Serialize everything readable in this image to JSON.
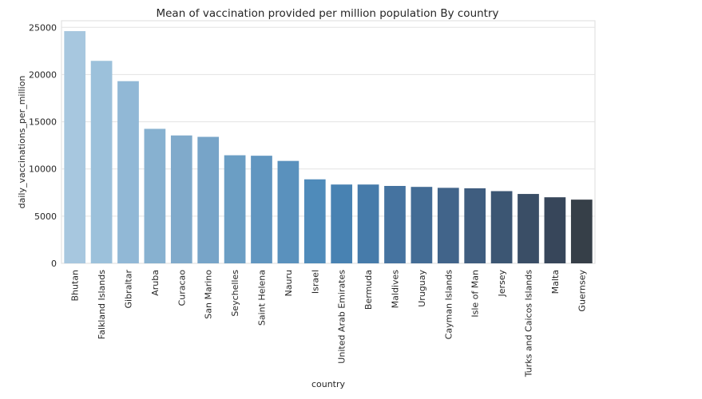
{
  "chart_data": {
    "type": "bar",
    "title": "Mean of vaccination provided per million population By country",
    "xlabel": "country",
    "ylabel": "daily_vaccinations_per_million",
    "ylim": [
      0,
      25700
    ],
    "yticks": [
      0,
      5000,
      10000,
      15000,
      20000,
      25000
    ],
    "grid": true,
    "categories": [
      "Bhutan",
      "Falkland Islands",
      "Gibraltar",
      "Aruba",
      "Curacao",
      "San Marino",
      "Seychelles",
      "Saint Helena",
      "Nauru",
      "Israel",
      "United Arab Emirates",
      "Bermuda",
      "Maldives",
      "Uruguay",
      "Cayman Islands",
      "Isle of Man",
      "Jersey",
      "Turks and Caicos Islands",
      "Malta",
      "Guernsey"
    ],
    "values": [
      24600,
      21450,
      19300,
      14250,
      13550,
      13400,
      11450,
      11400,
      10850,
      8900,
      8350,
      8350,
      8200,
      8100,
      8000,
      7950,
      7650,
      7350,
      7000,
      6750
    ],
    "colors": [
      "#a7c7df",
      "#9cc1db",
      "#91b8d6",
      "#87b1d0",
      "#80aacb",
      "#77a4c8",
      "#6b9ec4",
      "#6196c0",
      "#5a91bd",
      "#4f8bba",
      "#4882b2",
      "#467baa",
      "#4573a0",
      "#436c95",
      "#41648a",
      "#3f5d7f",
      "#3c5673",
      "#3a4e66",
      "#37465a",
      "#363f48"
    ]
  }
}
